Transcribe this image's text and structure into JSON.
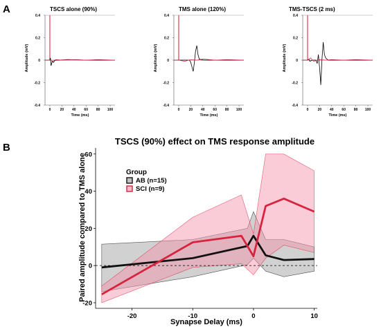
{
  "panel_a_label": "A",
  "panel_b_label": "B",
  "chart_data": [
    {
      "type": "line",
      "title": "TSCS alone (90%)",
      "xlabel": "Time (ms)",
      "ylabel": "Amplitude (mV)",
      "xlim": [
        -8,
        108
      ],
      "ylim": [
        -0.4,
        0.4
      ],
      "xticks": [
        0,
        20,
        40,
        60,
        80,
        100
      ],
      "yticks": [
        0.4,
        0.2,
        0,
        -0.2,
        -0.4
      ],
      "ytick_labels": [
        "0.4",
        "0.2",
        "0",
        "-0.2",
        "-0.4"
      ],
      "stim_marker_x": 0,
      "series": [
        {
          "color": "#000000",
          "x": [
            -8,
            0,
            1,
            2,
            3,
            4,
            6,
            8,
            10,
            15,
            30,
            60,
            108
          ],
          "y": [
            0,
            0,
            0.02,
            -0.05,
            -0.03,
            -0.01,
            -0.02,
            -0.005,
            0,
            0,
            0.005,
            0,
            0
          ]
        },
        {
          "color": "#d8233f",
          "x": [
            -8,
            0,
            5,
            10,
            20,
            40,
            60,
            80,
            108
          ],
          "y": [
            0,
            0,
            -0.01,
            0.005,
            0,
            0.005,
            0,
            0.005,
            0
          ]
        }
      ]
    },
    {
      "type": "line",
      "title": "TMS alone (120%)",
      "xlabel": "Time (ms)",
      "ylabel": "Amplitude (mV)",
      "xlim": [
        -8,
        108
      ],
      "ylim": [
        -0.4,
        0.4
      ],
      "xticks": [
        0,
        20,
        40,
        60,
        80,
        100
      ],
      "yticks": [
        0.4,
        0.2,
        0,
        -0.2,
        -0.4
      ],
      "ytick_labels": [
        "0.4",
        "0.2",
        "0",
        "-0.2",
        "-0.4"
      ],
      "stim_marker_x": 0,
      "series": [
        {
          "color": "#000000",
          "x": [
            -8,
            0,
            10,
            18,
            20,
            22,
            24,
            26,
            28,
            30,
            32,
            34,
            40,
            60,
            108
          ],
          "y": [
            0,
            0,
            0,
            0,
            -0.02,
            -0.06,
            -0.1,
            -0.02,
            0.08,
            0.13,
            0.05,
            0.01,
            0,
            0,
            0
          ]
        },
        {
          "color": "#d8233f",
          "x": [
            -8,
            0,
            10,
            20,
            30,
            40,
            60,
            80,
            108
          ],
          "y": [
            0,
            0,
            -0.01,
            0.005,
            0,
            0.01,
            0,
            0.005,
            0
          ]
        }
      ]
    },
    {
      "type": "line",
      "title": "TMS-TSCS (2 ms)",
      "xlabel": "Time (ms)",
      "ylabel": "Amplitude (mV)",
      "xlim": [
        -8,
        108
      ],
      "ylim": [
        -0.4,
        0.4
      ],
      "xticks": [
        0,
        20,
        40,
        60,
        80,
        100
      ],
      "yticks": [
        0.4,
        0.2,
        0,
        -0.2,
        -0.4
      ],
      "ytick_labels": [
        "0.4",
        "0.2",
        "0",
        "-0.2",
        "-0.4"
      ],
      "stim_marker_x": 0,
      "series": [
        {
          "color": "#000000",
          "x": [
            -8,
            0,
            2,
            4,
            8,
            14,
            16,
            18,
            20,
            22,
            24,
            26,
            28,
            30,
            34,
            40,
            60,
            108
          ],
          "y": [
            0,
            0,
            0.01,
            -0.01,
            0,
            0,
            -0.03,
            0.05,
            -0.07,
            -0.22,
            0.02,
            0.16,
            0.05,
            0.02,
            0,
            0,
            0,
            0
          ]
        },
        {
          "color": "#d8233f",
          "x": [
            -8,
            0,
            5,
            10,
            20,
            30,
            40,
            60,
            80,
            108
          ],
          "y": [
            0,
            0,
            0.02,
            -0.01,
            0.005,
            0,
            0.005,
            0,
            0.005,
            0
          ]
        }
      ]
    },
    {
      "type": "line",
      "title": "TSCS (90%) effect on TMS response amplitude",
      "xlabel": "Synapse Delay (ms)",
      "ylabel": "Paired amplitude compared to TMS alone",
      "xlim": [
        -26,
        10.5
      ],
      "ylim": [
        -23,
        64
      ],
      "xticks": [
        -20,
        -10,
        0,
        10
      ],
      "yticks": [
        -20,
        0,
        20,
        40,
        60
      ],
      "legend_title": "Group",
      "legend_position": "top-left",
      "zero_line": "dashed",
      "series": [
        {
          "name": "AB (n=15)",
          "color": "#111111",
          "fill": "#9a9a9a",
          "x": [
            -25,
            -10,
            -1,
            0,
            2,
            5,
            10
          ],
          "y": [
            -1,
            4,
            10.5,
            16,
            5.5,
            3,
            3.5
          ],
          "upper": [
            11.5,
            14,
            20,
            29,
            14,
            14,
            10
          ],
          "lower": [
            -14,
            -6,
            0.5,
            4,
            -3,
            -6,
            -3
          ]
        },
        {
          "name": "SCI (n=9)",
          "color": "#d8233f",
          "fill": "#f58ea6",
          "x": [
            -25,
            -10,
            -2,
            0,
            2,
            5,
            10
          ],
          "y": [
            -15.5,
            12.5,
            16,
            5,
            32,
            36,
            29
          ],
          "upper": [
            -11,
            26,
            38,
            17,
            60,
            60,
            51
          ],
          "lower": [
            -20,
            -1,
            1,
            -5,
            4,
            11,
            7
          ]
        }
      ]
    }
  ]
}
